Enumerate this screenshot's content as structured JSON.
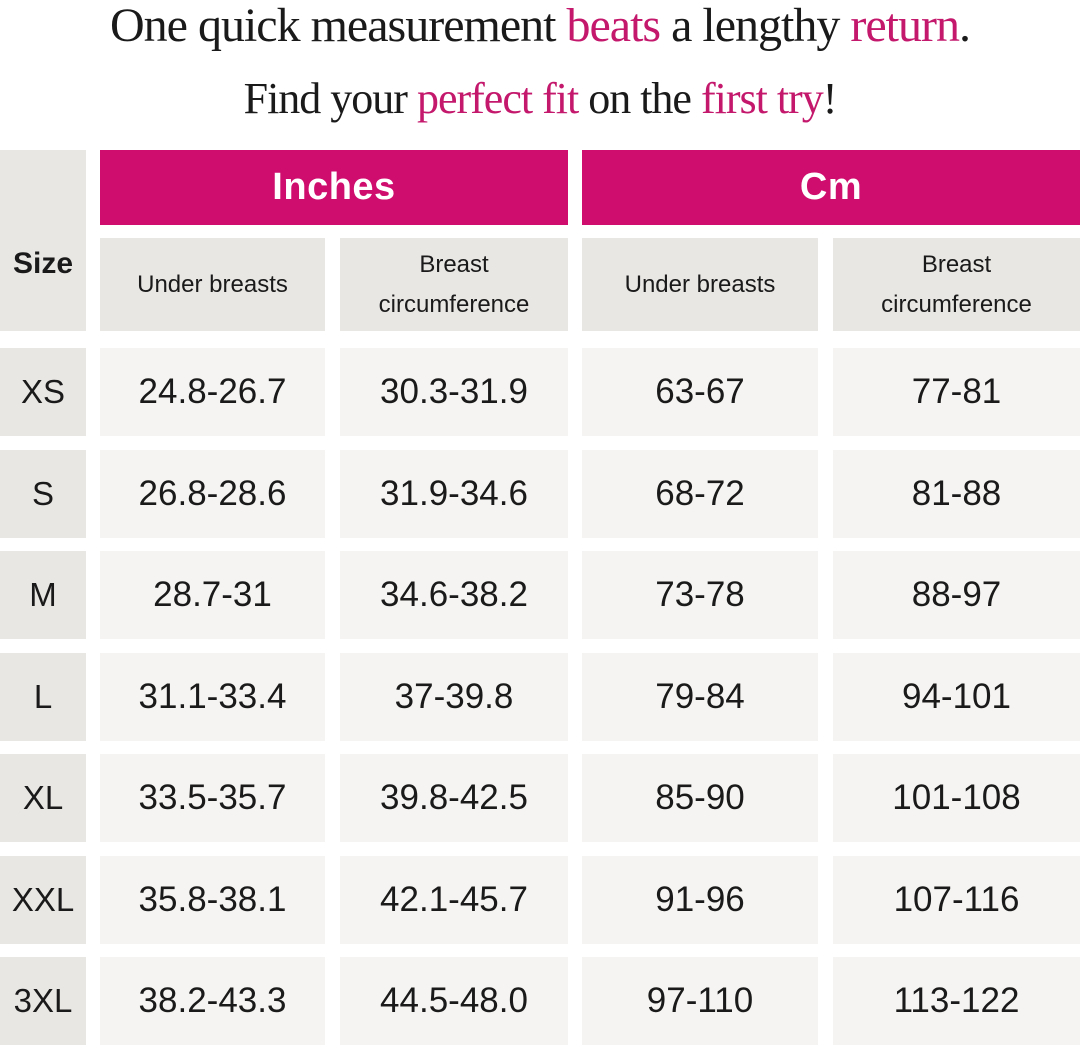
{
  "colors": {
    "accent": "#c4186c",
    "band": "#cf0d6e",
    "cell_gray": "#e9e7e4",
    "cell_light": "#f5f4f2",
    "text": "#1a1a1a"
  },
  "headline": {
    "line1": {
      "p1": "One quick measurement ",
      "accent1": "beats",
      "p2": " a lengthy ",
      "accent2": "return",
      "p3": "."
    },
    "line2": {
      "p1": "Find your ",
      "accent1": "perfect fit",
      "p2": " on the ",
      "accent2": "first try",
      "p3": "!"
    }
  },
  "labels": {
    "size": "Size",
    "under": "Under breasts",
    "breast_l1": "Breast",
    "breast_l2": "circumference"
  },
  "chart_data": {
    "type": "table",
    "column_groups": [
      "Inches",
      "Cm"
    ],
    "columns": [
      "Size",
      "Under breasts (in)",
      "Breast circumference (in)",
      "Under breasts (cm)",
      "Breast circumference (cm)"
    ],
    "rows": [
      [
        "XS",
        "24.8-26.7",
        "30.3-31.9",
        "63-67",
        "77-81"
      ],
      [
        "S",
        "26.8-28.6",
        "31.9-34.6",
        "68-72",
        "81-88"
      ],
      [
        "M",
        "28.7-31",
        "34.6-38.2",
        "73-78",
        "88-97"
      ],
      [
        "L",
        "31.1-33.4",
        "37-39.8",
        "79-84",
        "94-101"
      ],
      [
        "XL",
        "33.5-35.7",
        "39.8-42.5",
        "85-90",
        "101-108"
      ],
      [
        "XXL",
        "35.8-38.1",
        "42.1-45.7",
        "91-96",
        "107-116"
      ],
      [
        "3XL",
        "38.2-43.3",
        "44.5-48.0",
        "97-110",
        "113-122"
      ]
    ]
  }
}
